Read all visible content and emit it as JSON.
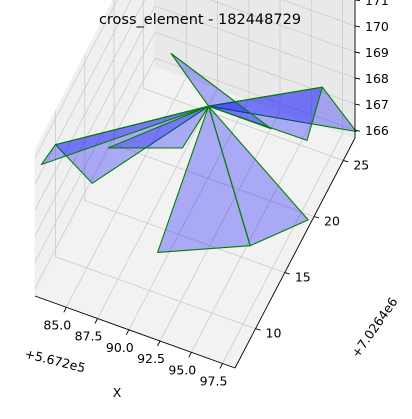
{
  "chart_data": {
    "type": "3d-surface",
    "title": "cross_element - 182448729",
    "xlabel": "X",
    "ylabel": "",
    "zlabel": "",
    "x_offset_label": "+5.672e5",
    "y_offset_label": "+7.0264e6",
    "x_ticks": [
      "85.0",
      "87.5",
      "90.0",
      "92.5",
      "95.0",
      "97.5"
    ],
    "y_ticks": [
      "10",
      "15",
      "20",
      "25"
    ],
    "z_ticks": [
      "166",
      "167",
      "168",
      "169",
      "170",
      "171"
    ],
    "grid": true,
    "face_color": "#0000ff",
    "edge_color": "#008000",
    "faces": [
      [
        [
          82.5,
          10.0,
          170.0
        ],
        [
          84.5,
          12.0,
          168.0
        ],
        [
          91.0,
          18.0,
          169.5
        ]
      ],
      [
        [
          82.5,
          10.0,
          170.0
        ],
        [
          79.5,
          14.0,
          167.0
        ],
        [
          91.0,
          18.0,
          169.5
        ]
      ],
      [
        [
          91.0,
          18.0,
          169.5
        ],
        [
          98.0,
          22.5,
          169.5
        ],
        [
          100.0,
          24.0,
          167.5
        ]
      ],
      [
        [
          91.0,
          18.0,
          169.5
        ],
        [
          98.0,
          22.5,
          169.5
        ],
        [
          97.0,
          22.0,
          167.5
        ]
      ],
      [
        [
          91.0,
          18.0,
          169.5
        ],
        [
          88.0,
          18.0,
          171.0
        ],
        [
          96.0,
          18.0,
          169.5
        ]
      ],
      [
        [
          91.0,
          18.0,
          169.5
        ],
        [
          95.5,
          15.5,
          166.0
        ],
        [
          98.5,
          19.0,
          166.0
        ]
      ],
      [
        [
          91.0,
          18.0,
          169.5
        ],
        [
          89.5,
          12.5,
          166.0
        ],
        [
          95.5,
          15.5,
          166.0
        ]
      ],
      [
        [
          91.0,
          18.0,
          169.5
        ],
        [
          87.5,
          21.0,
          166.0
        ],
        [
          82.5,
          19.0,
          166.0
        ]
      ]
    ]
  }
}
